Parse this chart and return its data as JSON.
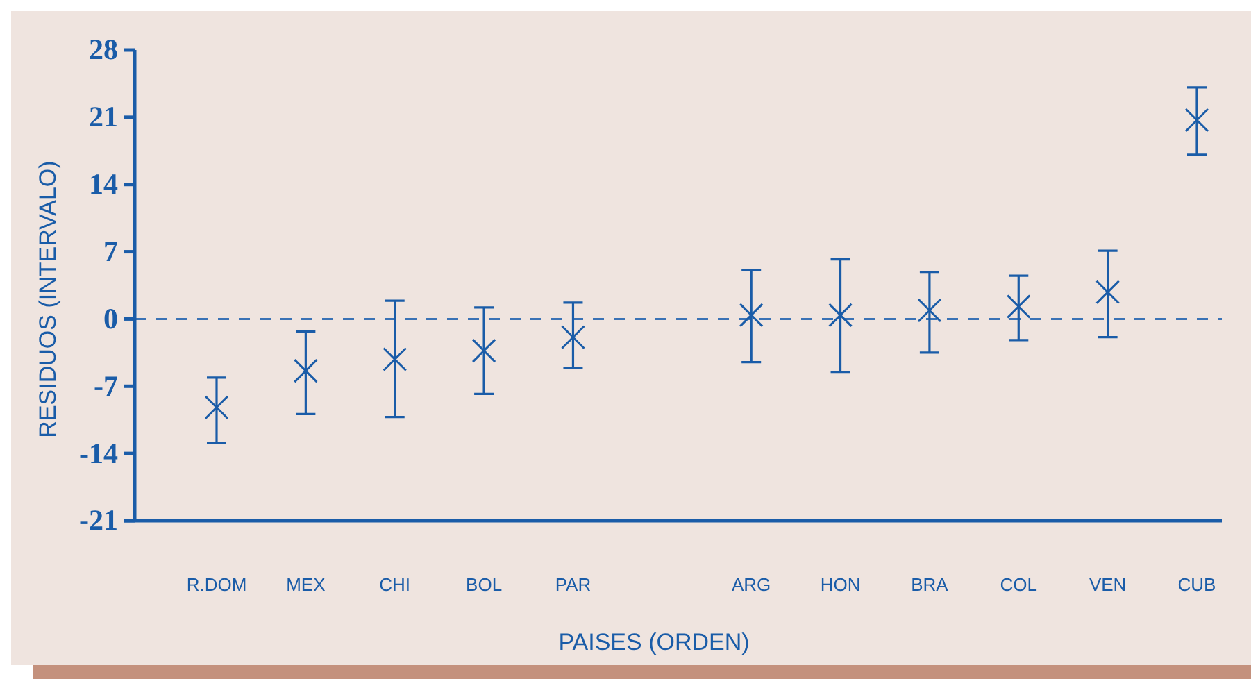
{
  "chart_data": {
    "type": "scatter",
    "xlabel": "PAISES (ORDEN)",
    "ylabel": "RESIDUOS (INTERVALO)",
    "categories": [
      "R.DOM",
      "MEX",
      "CHI",
      "BOL",
      "PAR",
      null,
      "ARG",
      "HON",
      "BRA",
      "COL",
      "VEN",
      "CUB"
    ],
    "values": [
      -9.2,
      -5.4,
      -4.2,
      -3.3,
      -1.9,
      null,
      0.4,
      0.4,
      0.9,
      1.3,
      2.8,
      20.7
    ],
    "errors": [
      [
        -12.9,
        -6.1
      ],
      [
        -9.9,
        -1.3
      ],
      [
        -10.2,
        1.9
      ],
      [
        -7.8,
        1.2
      ],
      [
        -5.1,
        1.7
      ],
      null,
      [
        -4.5,
        5.1
      ],
      [
        -5.5,
        6.2
      ],
      [
        -3.5,
        4.9
      ],
      [
        -2.2,
        4.5
      ],
      [
        -1.9,
        7.1
      ],
      [
        17.1,
        24.1
      ]
    ],
    "color": "#1a5ca8",
    "marker": "cross",
    "ylim": [
      -21,
      28
    ],
    "yticks": [
      -21,
      -14,
      -7,
      0,
      7,
      14,
      21,
      28
    ],
    "ref_lines": [
      {
        "axis": "y",
        "value": 0,
        "line_style": "dashed",
        "color": "#3a72b5"
      }
    ]
  }
}
